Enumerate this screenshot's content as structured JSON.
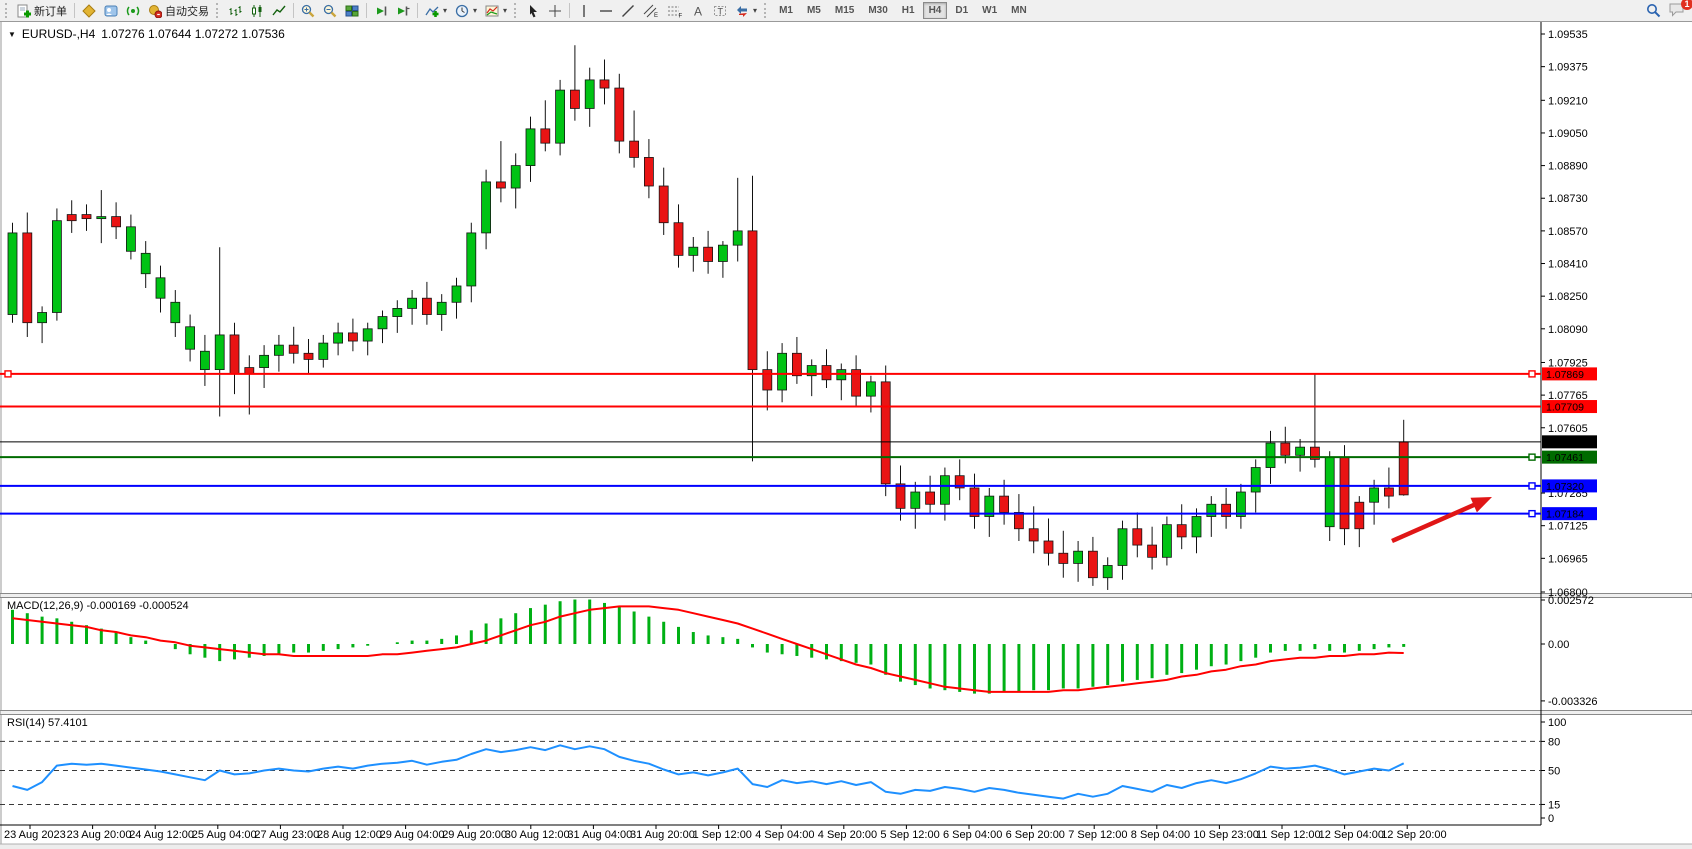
{
  "toolbar": {
    "new_order_label": "新订单",
    "autotrading_label": "自动交易",
    "timeframes": [
      "M1",
      "M5",
      "M15",
      "M30",
      "H1",
      "H4",
      "D1",
      "W1",
      "MN"
    ],
    "active_timeframe": "H4",
    "chat_badge": "1"
  },
  "chart": {
    "symbol": "EURUSD-,H4",
    "ohlc": "1.07276 1.07644 1.07272 1.07536"
  },
  "price_axis": {
    "ticks": [
      "1.09535",
      "1.09375",
      "1.09210",
      "1.09050",
      "1.08890",
      "1.08730",
      "1.08570",
      "1.08410",
      "1.08250",
      "1.08090",
      "1.07925",
      "1.07765",
      "1.07605",
      "1.07285",
      "1.07125",
      "1.06965",
      "1.06800"
    ]
  },
  "levels": [
    {
      "label": "1.07869",
      "value": 1.07869,
      "color": "#FF0000",
      "width": 2,
      "handles": [
        "left",
        "right"
      ]
    },
    {
      "label": "1.07709",
      "value": 1.07709,
      "color": "#FF0000",
      "width": 2,
      "handles": []
    },
    {
      "label": "1.07536",
      "value": 1.07536,
      "color": "#000000",
      "width": 1,
      "handles": [],
      "type": "bid-line"
    },
    {
      "label": "1.07461",
      "value": 1.07461,
      "color": "#006B00",
      "width": 2,
      "handles": [
        "right"
      ]
    },
    {
      "label": "1.07320",
      "value": 1.0732,
      "color": "#0000FF",
      "width": 2,
      "handles": [
        "right"
      ]
    },
    {
      "label": "1.07184",
      "value": 1.07184,
      "color": "#0000FF",
      "width": 2,
      "handles": [
        "right"
      ]
    }
  ],
  "time_axis": [
    "23 Aug 2023",
    "23 Aug 20:00",
    "24 Aug 12:00",
    "25 Aug 04:00",
    "27 Aug 23:00",
    "28 Aug 12:00",
    "29 Aug 04:00",
    "29 Aug 20:00",
    "30 Aug 12:00",
    "31 Aug 04:00",
    "31 Aug 20:00",
    "1 Sep 12:00",
    "4 Sep 04:00",
    "4 Sep 20:00",
    "5 Sep 12:00",
    "6 Sep 04:00",
    "6 Sep 20:00",
    "7 Sep 12:00",
    "8 Sep 04:00",
    "10 Sep 23:00",
    "11 Sep 12:00",
    "12 Sep 04:00",
    "12 Sep 20:00"
  ],
  "macd": {
    "label": "MACD(12,26,9) -0.000169 -0.000524",
    "axis": [
      "0.002572",
      "0.00",
      "-0.003326"
    ],
    "histogram": [
      0.002,
      0.0018,
      0.0016,
      0.0015,
      0.0013,
      0.0011,
      0.0009,
      0.0007,
      0.0004,
      0.0002,
      0.0,
      -0.0003,
      -0.0006,
      -0.0008,
      -0.001,
      -0.0009,
      -0.0008,
      -0.0007,
      -0.0006,
      -0.0005,
      -0.0005,
      -0.0004,
      -0.0003,
      -0.0002,
      -0.0001,
      0.0,
      0.0001,
      0.0002,
      0.0002,
      0.0003,
      0.0005,
      0.0008,
      0.0012,
      0.0015,
      0.0018,
      0.0021,
      0.0023,
      0.0025,
      0.0026,
      0.0026,
      0.0024,
      0.0022,
      0.0019,
      0.0016,
      0.0013,
      0.001,
      0.0007,
      0.0005,
      0.0004,
      0.0003,
      -0.0002,
      -0.0005,
      -0.0006,
      -0.0007,
      -0.0008,
      -0.0009,
      -0.001,
      -0.0011,
      -0.0012,
      -0.0018,
      -0.0022,
      -0.0024,
      -0.0026,
      -0.0027,
      -0.0028,
      -0.0029,
      -0.0029,
      -0.0028,
      -0.0028,
      -0.0027,
      -0.0027,
      -0.0026,
      -0.0026,
      -0.0025,
      -0.0024,
      -0.0022,
      -0.0021,
      -0.002,
      -0.0018,
      -0.0017,
      -0.0015,
      -0.0013,
      -0.0012,
      -0.001,
      -0.0008,
      -0.0005,
      -0.0004,
      -0.0004,
      -0.0003,
      -0.0004,
      -0.0005,
      -0.0004,
      -0.0003,
      -0.0002,
      -0.000169
    ],
    "signal": [
      0.0015,
      0.0014,
      0.0013,
      0.0012,
      0.0011,
      0.001,
      0.0008,
      0.0007,
      0.0005,
      0.0004,
      0.0002,
      0.0001,
      -0.0001,
      -0.0002,
      -0.0003,
      -0.0004,
      -0.0005,
      -0.0006,
      -0.0006,
      -0.0007,
      -0.0007,
      -0.0007,
      -0.0007,
      -0.0007,
      -0.0007,
      -0.0006,
      -0.0006,
      -0.0005,
      -0.0004,
      -0.0003,
      -0.0002,
      0.0,
      0.0002,
      0.0005,
      0.0008,
      0.0011,
      0.0013,
      0.0016,
      0.0018,
      0.002,
      0.0021,
      0.0022,
      0.0022,
      0.0022,
      0.0021,
      0.002,
      0.0018,
      0.0016,
      0.0014,
      0.0012,
      0.0009,
      0.0006,
      0.0003,
      0.0,
      -0.0003,
      -0.0006,
      -0.0009,
      -0.0012,
      -0.0014,
      -0.0017,
      -0.0019,
      -0.0021,
      -0.0023,
      -0.0025,
      -0.0026,
      -0.0027,
      -0.0028,
      -0.0028,
      -0.0028,
      -0.0028,
      -0.0028,
      -0.0027,
      -0.0027,
      -0.0026,
      -0.0025,
      -0.0024,
      -0.0023,
      -0.0022,
      -0.0021,
      -0.0019,
      -0.0018,
      -0.0016,
      -0.0015,
      -0.0013,
      -0.0012,
      -0.001,
      -0.0009,
      -0.0008,
      -0.0008,
      -0.0007,
      -0.0007,
      -0.0006,
      -0.0006,
      -0.0005,
      -0.000524
    ]
  },
  "rsi": {
    "label": "RSI(14) 57.4101",
    "axis": [
      "100",
      "80",
      "50",
      "15",
      "0"
    ],
    "levels": [
      80,
      50,
      15
    ],
    "values": [
      34,
      30,
      38,
      55,
      57,
      56,
      57,
      55,
      53,
      51,
      49,
      46,
      43,
      40,
      50,
      46,
      47,
      50,
      52,
      50,
      49,
      52,
      54,
      52,
      55,
      57,
      58,
      60,
      56,
      59,
      61,
      67,
      72,
      69,
      71,
      74,
      71,
      76,
      72,
      75,
      72,
      64,
      60,
      57,
      51,
      46,
      48,
      45,
      48,
      52,
      36,
      33,
      40,
      37,
      39,
      36,
      39,
      35,
      38,
      28,
      26,
      30,
      29,
      33,
      31,
      28,
      32,
      30,
      27,
      25,
      23,
      21,
      26,
      23,
      26,
      34,
      31,
      28,
      35,
      32,
      37,
      40,
      37,
      41,
      47,
      54,
      52,
      53,
      55,
      51,
      46,
      49,
      52,
      50,
      57.4
    ]
  },
  "annotation_arrow": {
    "color": "#E01616",
    "from": [
      1392,
      541
    ],
    "to": [
      1492,
      497
    ]
  },
  "colors": {
    "bull": "#00C314",
    "bear": "#E91414",
    "macd_hist": "#00B014",
    "macd_signal": "#FF0000",
    "rsi_line": "#1E90FF"
  },
  "chart_data": {
    "type": "candlestick",
    "symbol": "EURUSD-",
    "timeframe": "H4",
    "title": "EURUSD-,H4 1.07276 1.07644 1.07272 1.07536",
    "last_ohlc": {
      "open": 1.07276,
      "high": 1.07644,
      "low": 1.07272,
      "close": 1.07536
    },
    "ylim": [
      1.068,
      1.09535
    ],
    "candles": [
      [
        1.0816,
        1.0861,
        1.0812,
        1.0856,
        "g"
      ],
      [
        1.0856,
        1.0866,
        1.0805,
        1.0812,
        "r"
      ],
      [
        1.0812,
        1.082,
        1.0802,
        1.0817,
        "g"
      ],
      [
        1.0817,
        1.0868,
        1.0813,
        1.0862,
        "g"
      ],
      [
        1.0862,
        1.0872,
        1.0856,
        1.0865,
        "r"
      ],
      [
        1.0865,
        1.087,
        1.0857,
        1.0863,
        "r"
      ],
      [
        1.0863,
        1.0877,
        1.0851,
        1.0864,
        "g"
      ],
      [
        1.0864,
        1.0871,
        1.0853,
        1.0859,
        "r"
      ],
      [
        1.0859,
        1.0865,
        1.0843,
        1.0847,
        "g"
      ],
      [
        1.0846,
        1.0852,
        1.0829,
        1.0836,
        "g"
      ],
      [
        1.0834,
        1.084,
        1.0817,
        1.0824,
        "g"
      ],
      [
        1.0822,
        1.0828,
        1.0805,
        1.0812,
        "g"
      ],
      [
        1.081,
        1.0816,
        1.0793,
        1.0799,
        "g"
      ],
      [
        1.0798,
        1.0806,
        1.0781,
        1.0789,
        "g"
      ],
      [
        1.0789,
        1.0849,
        1.0766,
        1.0806,
        "g"
      ],
      [
        1.0806,
        1.0812,
        1.0777,
        1.0787,
        "r"
      ],
      [
        1.0787,
        1.0796,
        1.0767,
        1.079,
        "r"
      ],
      [
        1.079,
        1.0801,
        1.078,
        1.0796,
        "g"
      ],
      [
        1.0796,
        1.0806,
        1.0788,
        1.0801,
        "g"
      ],
      [
        1.0801,
        1.081,
        1.0792,
        1.0797,
        "r"
      ],
      [
        1.0797,
        1.0804,
        1.0787,
        1.0794,
        "r"
      ],
      [
        1.0794,
        1.0806,
        1.079,
        1.0802,
        "g"
      ],
      [
        1.0802,
        1.0812,
        1.0796,
        1.0807,
        "g"
      ],
      [
        1.0807,
        1.0814,
        1.0798,
        1.0803,
        "r"
      ],
      [
        1.0803,
        1.0812,
        1.0796,
        1.0809,
        "g"
      ],
      [
        1.0809,
        1.0818,
        1.0802,
        1.0815,
        "g"
      ],
      [
        1.0815,
        1.0823,
        1.0807,
        1.0819,
        "g"
      ],
      [
        1.0819,
        1.0828,
        1.0811,
        1.0824,
        "g"
      ],
      [
        1.0824,
        1.0832,
        1.0811,
        1.0816,
        "r"
      ],
      [
        1.0816,
        1.0826,
        1.0808,
        1.0822,
        "g"
      ],
      [
        1.0822,
        1.0834,
        1.0814,
        1.083,
        "g"
      ],
      [
        1.083,
        1.0861,
        1.0822,
        1.0856,
        "g"
      ],
      [
        1.0856,
        1.0887,
        1.0848,
        1.0881,
        "g"
      ],
      [
        1.0881,
        1.0901,
        1.0871,
        1.0878,
        "r"
      ],
      [
        1.0878,
        1.0895,
        1.0868,
        1.0889,
        "g"
      ],
      [
        1.0889,
        1.0913,
        1.0881,
        1.0907,
        "g"
      ],
      [
        1.0907,
        1.0921,
        1.0896,
        1.09,
        "r"
      ],
      [
        1.09,
        1.0931,
        1.0894,
        1.0926,
        "g"
      ],
      [
        1.0926,
        1.0948,
        1.0911,
        1.0917,
        "r"
      ],
      [
        1.0917,
        1.0937,
        1.0908,
        1.0931,
        "g"
      ],
      [
        1.0931,
        1.0941,
        1.0919,
        1.0927,
        "r"
      ],
      [
        1.0927,
        1.0934,
        1.0895,
        1.0901,
        "r"
      ],
      [
        1.0901,
        1.0916,
        1.0888,
        1.0893,
        "r"
      ],
      [
        1.0893,
        1.0902,
        1.0873,
        1.0879,
        "r"
      ],
      [
        1.0879,
        1.0888,
        1.0855,
        1.0861,
        "r"
      ],
      [
        1.0861,
        1.087,
        1.0839,
        1.0845,
        "r"
      ],
      [
        1.0845,
        1.0854,
        1.0837,
        1.0849,
        "g"
      ],
      [
        1.0849,
        1.0857,
        1.0836,
        1.0842,
        "r"
      ],
      [
        1.0842,
        1.0852,
        1.0834,
        1.085,
        "g"
      ],
      [
        1.085,
        1.0883,
        1.0842,
        1.0857,
        "g"
      ],
      [
        1.0857,
        1.0884,
        1.0744,
        1.0789,
        "r"
      ],
      [
        1.0789,
        1.0798,
        1.0769,
        1.0779,
        "r"
      ],
      [
        1.0779,
        1.0802,
        1.0773,
        1.0797,
        "g"
      ],
      [
        1.0797,
        1.0805,
        1.0782,
        1.0786,
        "r"
      ],
      [
        1.0786,
        1.0794,
        1.0776,
        1.0791,
        "g"
      ],
      [
        1.0791,
        1.0799,
        1.078,
        1.0784,
        "r"
      ],
      [
        1.0784,
        1.0792,
        1.0774,
        1.0789,
        "g"
      ],
      [
        1.0789,
        1.0796,
        1.0771,
        1.0776,
        "r"
      ],
      [
        1.0776,
        1.0786,
        1.0768,
        1.0783,
        "g"
      ],
      [
        1.0783,
        1.0791,
        1.0727,
        1.0733,
        "r"
      ],
      [
        1.0733,
        1.0742,
        1.0715,
        1.0721,
        "r"
      ],
      [
        1.0721,
        1.0734,
        1.0711,
        1.0729,
        "g"
      ],
      [
        1.0729,
        1.0737,
        1.0718,
        1.0723,
        "r"
      ],
      [
        1.0723,
        1.0741,
        1.0715,
        1.0737,
        "g"
      ],
      [
        1.0737,
        1.0745,
        1.0725,
        1.0731,
        "r"
      ],
      [
        1.0731,
        1.0738,
        1.0711,
        1.0717,
        "r"
      ],
      [
        1.0717,
        1.0731,
        1.0707,
        1.0727,
        "g"
      ],
      [
        1.0727,
        1.0735,
        1.0713,
        1.0719,
        "r"
      ],
      [
        1.0719,
        1.0728,
        1.0705,
        1.0711,
        "r"
      ],
      [
        1.0711,
        1.0722,
        1.0699,
        1.0705,
        "r"
      ],
      [
        1.0705,
        1.0716,
        1.0693,
        1.0699,
        "r"
      ],
      [
        1.0699,
        1.071,
        1.0687,
        1.0694,
        "r"
      ],
      [
        1.0694,
        1.0705,
        1.0685,
        1.07,
        "g"
      ],
      [
        1.07,
        1.0707,
        1.0683,
        1.0687,
        "r"
      ],
      [
        1.0687,
        1.0697,
        1.0681,
        1.0693,
        "g"
      ],
      [
        1.0693,
        1.0715,
        1.0686,
        1.0711,
        "g"
      ],
      [
        1.0711,
        1.0719,
        1.0697,
        1.0703,
        "r"
      ],
      [
        1.0703,
        1.0712,
        1.0691,
        1.0697,
        "r"
      ],
      [
        1.0697,
        1.0717,
        1.0693,
        1.0713,
        "g"
      ],
      [
        1.0713,
        1.0723,
        1.0701,
        1.0707,
        "r"
      ],
      [
        1.0707,
        1.0721,
        1.0699,
        1.0717,
        "g"
      ],
      [
        1.0717,
        1.0727,
        1.0707,
        1.0723,
        "g"
      ],
      [
        1.0723,
        1.0731,
        1.0711,
        1.0717,
        "r"
      ],
      [
        1.0717,
        1.0733,
        1.0711,
        1.0729,
        "g"
      ],
      [
        1.0729,
        1.0745,
        1.0719,
        1.0741,
        "g"
      ],
      [
        1.0741,
        1.0759,
        1.0733,
        1.0753,
        "g"
      ],
      [
        1.0753,
        1.0761,
        1.0743,
        1.0747,
        "r"
      ],
      [
        1.0747,
        1.0755,
        1.0739,
        1.0751,
        "g"
      ],
      [
        1.0751,
        1.0787,
        1.0741,
        1.0745,
        "r"
      ],
      [
        1.0712,
        1.0749,
        1.0705,
        1.0746,
        "g"
      ],
      [
        1.0746,
        1.0752,
        1.0703,
        1.0711,
        "r"
      ],
      [
        1.0711,
        1.0727,
        1.0702,
        1.0724,
        "r"
      ],
      [
        1.0724,
        1.0735,
        1.0713,
        1.0731,
        "g"
      ],
      [
        1.0731,
        1.0741,
        1.0721,
        1.0727,
        "r"
      ],
      [
        1.07276,
        1.07644,
        1.07272,
        1.07536,
        "r"
      ]
    ]
  }
}
